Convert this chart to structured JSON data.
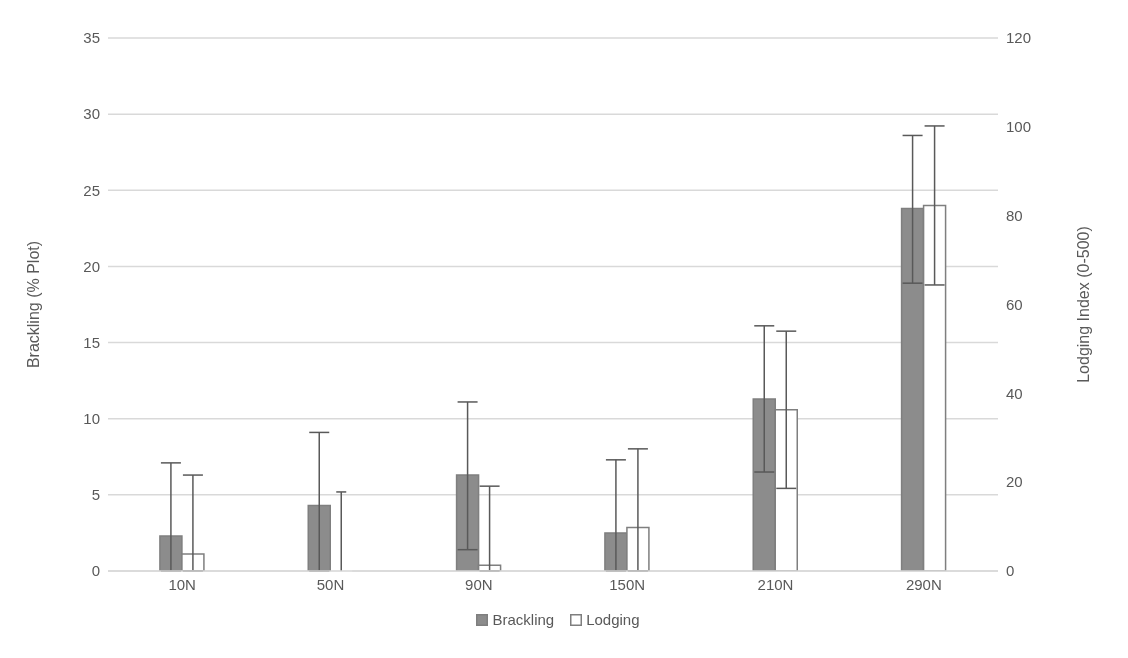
{
  "chart_data": {
    "type": "bar",
    "categories": [
      "10N",
      "50N",
      "90N",
      "150N",
      "210N",
      "290N"
    ],
    "ylabel": "Brackling (% Plot)",
    "y2label": "Lodging Index (0-500)",
    "series": [
      {
        "name": "Brackling",
        "color": "#8c8c8c",
        "values": [
          2.3,
          4.3,
          6.3,
          2.5,
          11.3,
          23.8
        ],
        "errors": [
          [
            0,
            7.1
          ],
          [
            0,
            9.1
          ],
          [
            1.4,
            11.1
          ],
          [
            0,
            7.3
          ],
          [
            6.5,
            16.1
          ],
          [
            18.9,
            28.6
          ]
        ]
      },
      {
        "name": "Lodging",
        "color": "#ffffff",
        "axis": "y2",
        "values": [
          3.8,
          0,
          1.3,
          9.8,
          36.3,
          82.3
        ],
        "errors": [
          [
            0,
            21.6
          ],
          [
            0,
            17.8
          ],
          [
            0,
            19.1
          ],
          [
            0,
            27.5
          ],
          [
            18.6,
            54.0
          ],
          [
            64.4,
            100.2
          ]
        ]
      }
    ],
    "ylim": [
      0,
      35
    ],
    "yticks": [
      0,
      5,
      10,
      15,
      20,
      25,
      30,
      35
    ],
    "y2lim": [
      0,
      120
    ],
    "y2ticks": [
      0,
      20,
      40,
      60,
      80,
      100,
      120
    ],
    "grid": "y",
    "legend": "bottom"
  }
}
